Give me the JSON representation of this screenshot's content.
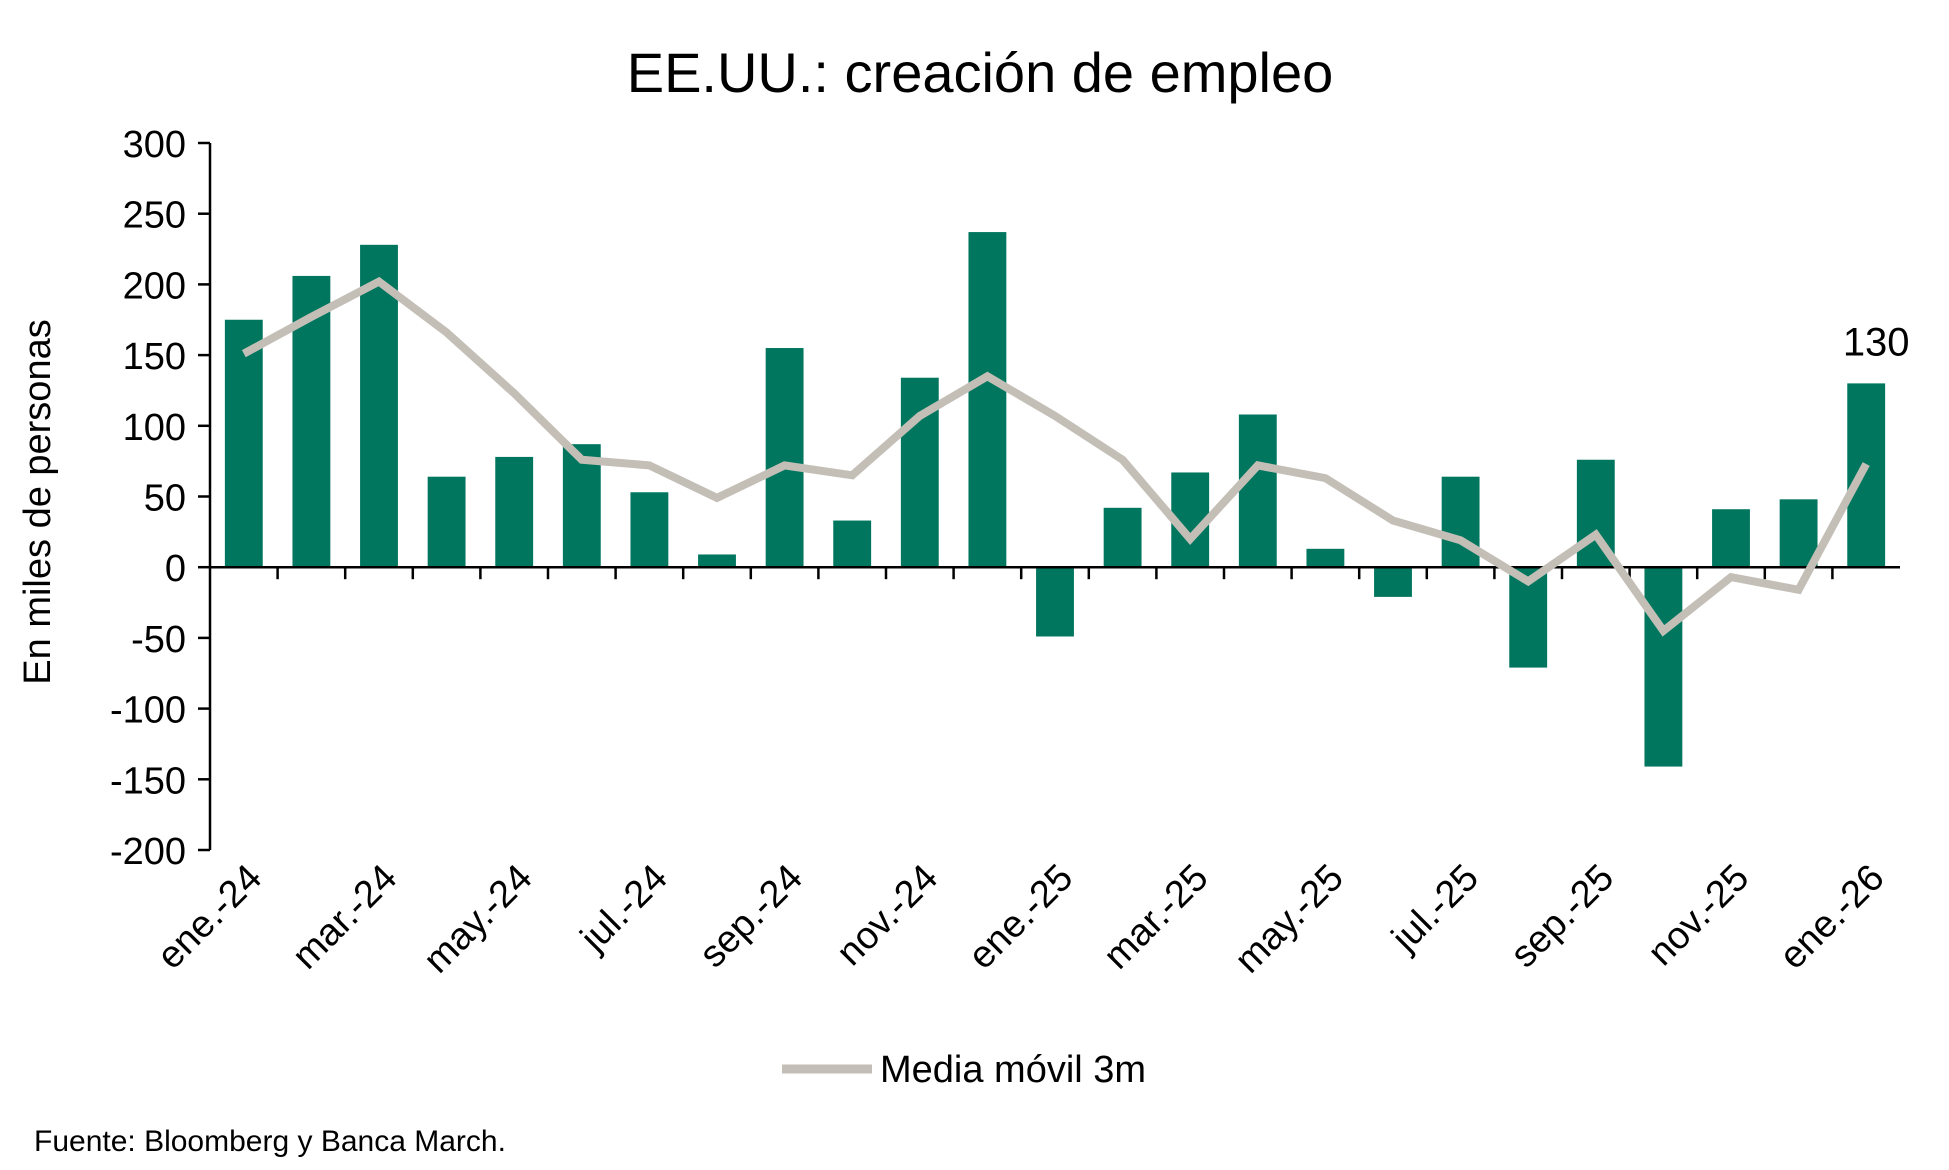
{
  "chart_data": {
    "type": "bar",
    "title": "EE.UU.: creación de empleo",
    "ylabel": "En miles de personas",
    "xlabel": "",
    "ylim": [
      -200,
      300
    ],
    "yticks": [
      300,
      250,
      200,
      150,
      100,
      50,
      0,
      -50,
      -100,
      -150,
      -200
    ],
    "yticks_display": [
      "300",
      "250",
      "200",
      "150",
      "100",
      "50",
      "0",
      "-50",
      "-100",
      "-150",
      "-200"
    ],
    "categories": [
      "ene.-24",
      "feb.-24",
      "mar.-24",
      "abr.-24",
      "may.-24",
      "jun.-24",
      "jul.-24",
      "ago.-24",
      "sep.-24",
      "oct.-24",
      "nov.-24",
      "dic.-24",
      "ene.-25",
      "feb.-25",
      "mar.-25",
      "abr.-25",
      "may.-25",
      "jun.-25",
      "jul.-25",
      "ago.-25",
      "sep.-25",
      "oct.-25",
      "nov.-25",
      "dic.-25",
      "ene.-26"
    ],
    "xtick_labels_shown": [
      "ene.-24",
      "mar.-24",
      "may.-24",
      "jul.-24",
      "sep.-24",
      "nov.-24",
      "ene.-25",
      "mar.-25",
      "may.-25",
      "jul.-25",
      "sep.-25",
      "nov.-25",
      "ene.-26"
    ],
    "series": [
      {
        "name": "Creación de empleo",
        "type": "bar",
        "color": "#00765F",
        "values": [
          175,
          206,
          228,
          64,
          78,
          87,
          53,
          9,
          155,
          33,
          134,
          237,
          -49,
          42,
          67,
          108,
          13,
          -21,
          64,
          -71,
          76,
          -141,
          41,
          48,
          130
        ]
      },
      {
        "name": "Media móvil 3m",
        "type": "line",
        "color": "#C4BFB6",
        "values": [
          151,
          177,
          202,
          166,
          123,
          76,
          72,
          49,
          72,
          65,
          107,
          135,
          107,
          76,
          20,
          72,
          63,
          33,
          19,
          -10,
          23,
          -45,
          -7,
          -16,
          73
        ]
      }
    ],
    "data_labels": [
      {
        "category": "ene.-26",
        "text": "130"
      }
    ],
    "legend": {
      "position": "bottom-center",
      "entries": [
        "Media móvil 3m"
      ]
    },
    "grid": false
  },
  "source_note": "Fuente: Bloomberg y Banca March."
}
